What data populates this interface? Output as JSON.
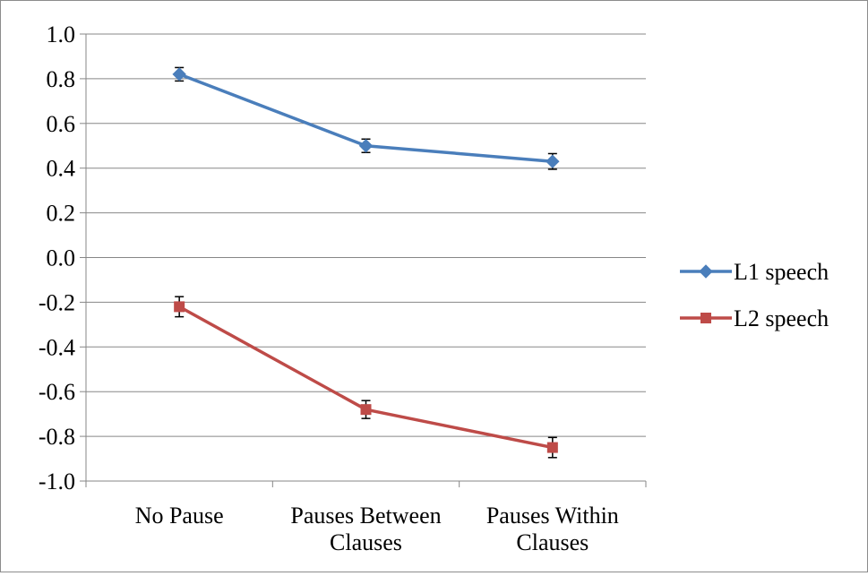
{
  "chart_data": {
    "type": "line",
    "categories": [
      [
        "No Pause"
      ],
      [
        "Pauses Between",
        "Clauses"
      ],
      [
        "Pauses Within",
        "Clauses"
      ]
    ],
    "series": [
      {
        "name": "L1 speech",
        "values": [
          0.82,
          0.5,
          0.43
        ],
        "error": [
          0.03,
          0.03,
          0.035
        ],
        "color": "#4a7ebb",
        "marker": "diamond"
      },
      {
        "name": "L2 speech",
        "values": [
          -0.22,
          -0.68,
          -0.85
        ],
        "error": [
          0.045,
          0.04,
          0.045
        ],
        "color": "#be4b48",
        "marker": "square"
      }
    ],
    "ylim": [
      -1.0,
      1.0
    ],
    "ytick_step": 0.2,
    "yticks": [
      "1.0",
      "0.8",
      "0.6",
      "0.4",
      "0.2",
      "0.0",
      "-0.2",
      "-0.4",
      "-0.6",
      "-0.8",
      "-1.0"
    ],
    "grid": "horizontal",
    "legend_position": "right",
    "title": "",
    "xlabel": "",
    "ylabel": ""
  }
}
